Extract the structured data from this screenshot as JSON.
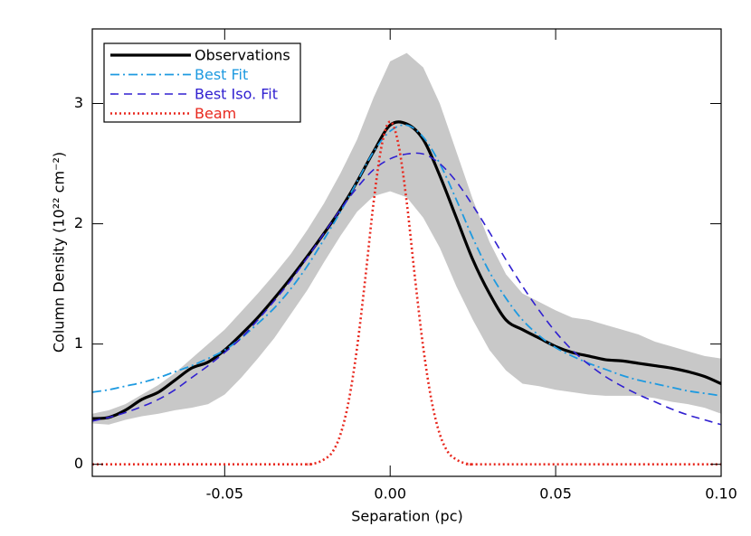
{
  "chart_data": {
    "type": "line",
    "xlabel": "Separation (pc)",
    "ylabel": "Column Density (10²² cm⁻²)",
    "xlim": [
      -0.09,
      0.1
    ],
    "ylim": [
      -0.1,
      3.62
    ],
    "xticks": [
      -0.05,
      {
        "value": 0,
        "label": "0.00"
      },
      0.05,
      {
        "value": 0.1,
        "label": "0.10"
      }
    ],
    "yticks": [
      0,
      1,
      2,
      3
    ],
    "legend": "upper left",
    "x": [
      -0.09,
      -0.085,
      -0.08,
      -0.075,
      -0.07,
      -0.065,
      -0.06,
      -0.055,
      -0.05,
      -0.045,
      -0.04,
      -0.035,
      -0.03,
      -0.025,
      -0.02,
      -0.015,
      -0.01,
      -0.005,
      0,
      0.005,
      0.01,
      0.015,
      0.02,
      0.025,
      0.03,
      0.035,
      0.04,
      0.045,
      0.05,
      0.055,
      0.06,
      0.065,
      0.07,
      0.075,
      0.08,
      0.085,
      0.09,
      0.095,
      0.1
    ],
    "band": {
      "color": "#c8c8c8",
      "upper": [
        0.42,
        0.45,
        0.5,
        0.58,
        0.66,
        0.76,
        0.88,
        1.0,
        1.12,
        1.27,
        1.42,
        1.58,
        1.75,
        1.95,
        2.17,
        2.42,
        2.7,
        3.05,
        3.35,
        3.42,
        3.3,
        3.0,
        2.6,
        2.2,
        1.85,
        1.58,
        1.42,
        1.35,
        1.28,
        1.22,
        1.2,
        1.16,
        1.12,
        1.08,
        1.02,
        0.98,
        0.94,
        0.9,
        0.88
      ],
      "lower": [
        0.34,
        0.33,
        0.37,
        0.4,
        0.42,
        0.45,
        0.47,
        0.5,
        0.58,
        0.72,
        0.88,
        1.05,
        1.25,
        1.45,
        1.68,
        1.9,
        2.1,
        2.23,
        2.27,
        2.22,
        2.05,
        1.8,
        1.48,
        1.2,
        0.95,
        0.78,
        0.67,
        0.65,
        0.62,
        0.6,
        0.58,
        0.57,
        0.57,
        0.57,
        0.55,
        0.52,
        0.5,
        0.47,
        0.42
      ]
    },
    "series": [
      {
        "name": "Observations",
        "color": "#000000",
        "values": [
          0.38,
          0.39,
          0.45,
          0.54,
          0.6,
          0.7,
          0.8,
          0.85,
          0.95,
          1.08,
          1.22,
          1.38,
          1.55,
          1.73,
          1.92,
          2.12,
          2.35,
          2.6,
          2.82,
          2.83,
          2.7,
          2.4,
          2.05,
          1.7,
          1.42,
          1.2,
          1.12,
          1.05,
          0.98,
          0.93,
          0.9,
          0.87,
          0.86,
          0.84,
          0.82,
          0.8,
          0.77,
          0.73,
          0.67
        ]
      },
      {
        "name": "Best Fit",
        "color": "#1e9ae0",
        "values": [
          0.6,
          0.62,
          0.65,
          0.68,
          0.72,
          0.77,
          0.82,
          0.88,
          0.95,
          1.05,
          1.17,
          1.3,
          1.46,
          1.65,
          1.87,
          2.1,
          2.35,
          2.6,
          2.77,
          2.82,
          2.72,
          2.5,
          2.2,
          1.88,
          1.6,
          1.38,
          1.2,
          1.07,
          0.97,
          0.9,
          0.84,
          0.79,
          0.74,
          0.7,
          0.67,
          0.64,
          0.61,
          0.59,
          0.57
        ]
      },
      {
        "name": "Best Iso. Fit",
        "color": "#3020d0",
        "values": [
          0.36,
          0.39,
          0.43,
          0.48,
          0.54,
          0.62,
          0.72,
          0.82,
          0.93,
          1.05,
          1.2,
          1.36,
          1.53,
          1.72,
          1.92,
          2.12,
          2.3,
          2.45,
          2.54,
          2.58,
          2.58,
          2.5,
          2.35,
          2.15,
          1.93,
          1.7,
          1.48,
          1.28,
          1.1,
          0.95,
          0.83,
          0.73,
          0.65,
          0.58,
          0.52,
          0.46,
          0.41,
          0.37,
          0.33
        ]
      },
      {
        "name": "Beam",
        "color": "#e8281e",
        "x": [
          -0.09,
          -0.03,
          -0.025,
          -0.0225,
          -0.02,
          -0.0175,
          -0.015,
          -0.0125,
          -0.01,
          -0.0075,
          -0.005,
          -0.0025,
          0,
          0.0025,
          0.005,
          0.0075,
          0.01,
          0.0125,
          0.015,
          0.0175,
          0.02,
          0.0225,
          0.025,
          0.03,
          0.1
        ],
        "values": [
          0,
          0,
          0,
          0.01,
          0.04,
          0.1,
          0.25,
          0.53,
          0.97,
          1.55,
          2.18,
          2.66,
          2.85,
          2.66,
          2.18,
          1.55,
          0.97,
          0.53,
          0.25,
          0.1,
          0.04,
          0.01,
          0,
          0,
          0
        ]
      }
    ]
  }
}
